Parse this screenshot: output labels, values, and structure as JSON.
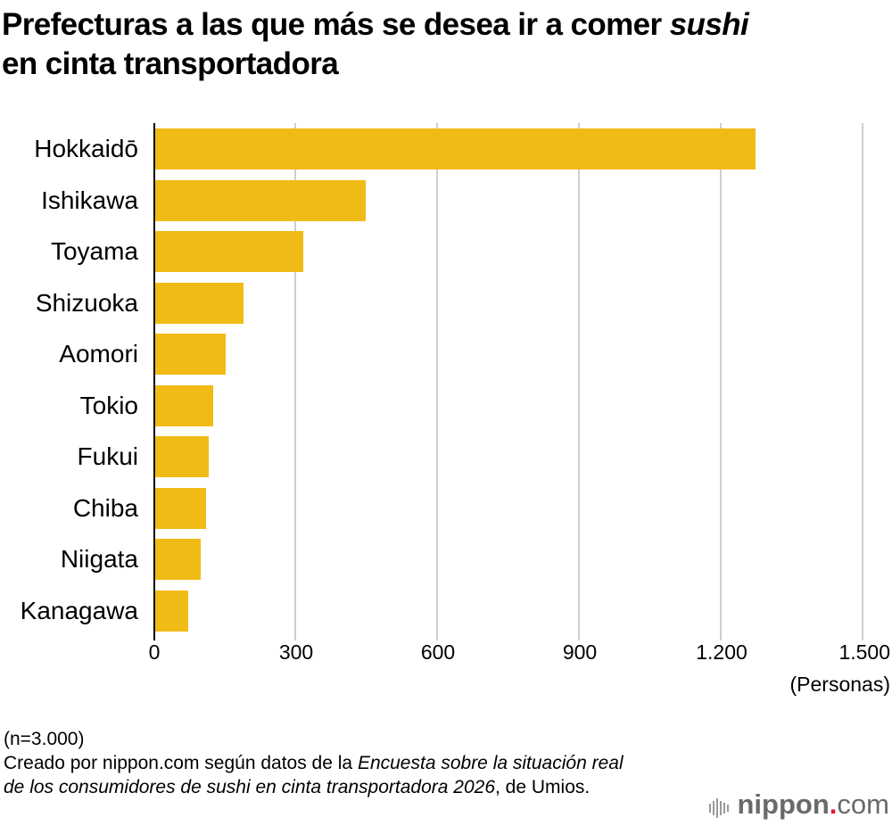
{
  "title": {
    "main": "Prefecturas a las que más se desea ir a comer ",
    "italic": "sushi",
    "line2": "en cinta transportadora"
  },
  "axis": {
    "ticks": [
      "0",
      "300",
      "600",
      "900",
      "1.200",
      "1.500"
    ],
    "unit": "(Personas)"
  },
  "notes": {
    "n": "(n=3.000)",
    "source_prefix": "Creado por nippon.com según datos de la ",
    "source_italic": "Encuesta sobre la situación real de los consumidores de sushi en cinta transportadora 2026",
    "source_suffix": ", de Umios."
  },
  "logo": {
    "brand": "nippon",
    "dot": ".",
    "tld": "com"
  },
  "colors": {
    "bar": "#f1bb16",
    "grid": "#cfcfcf",
    "axis": "#000000",
    "logo_dot": "#e8112d"
  },
  "chart_data": {
    "type": "bar",
    "orientation": "horizontal",
    "title": "Prefecturas a las que más se desea ir a comer sushi en cinta transportadora",
    "categories": [
      "Hokkaidō",
      "Ishikawa",
      "Toyama",
      "Shizuoka",
      "Aomori",
      "Tokio",
      "Fukui",
      "Chiba",
      "Niigata",
      "Kanagawa"
    ],
    "values": [
      1270,
      445,
      313,
      187,
      149,
      123,
      113,
      108,
      96,
      70
    ],
    "xlabel": "(Personas)",
    "ylabel": "",
    "xlim": [
      0,
      1500
    ],
    "xticks": [
      0,
      300,
      600,
      900,
      1200,
      1500
    ],
    "grid": true,
    "legend": null,
    "annotations": [
      "(n=3.000)"
    ]
  }
}
